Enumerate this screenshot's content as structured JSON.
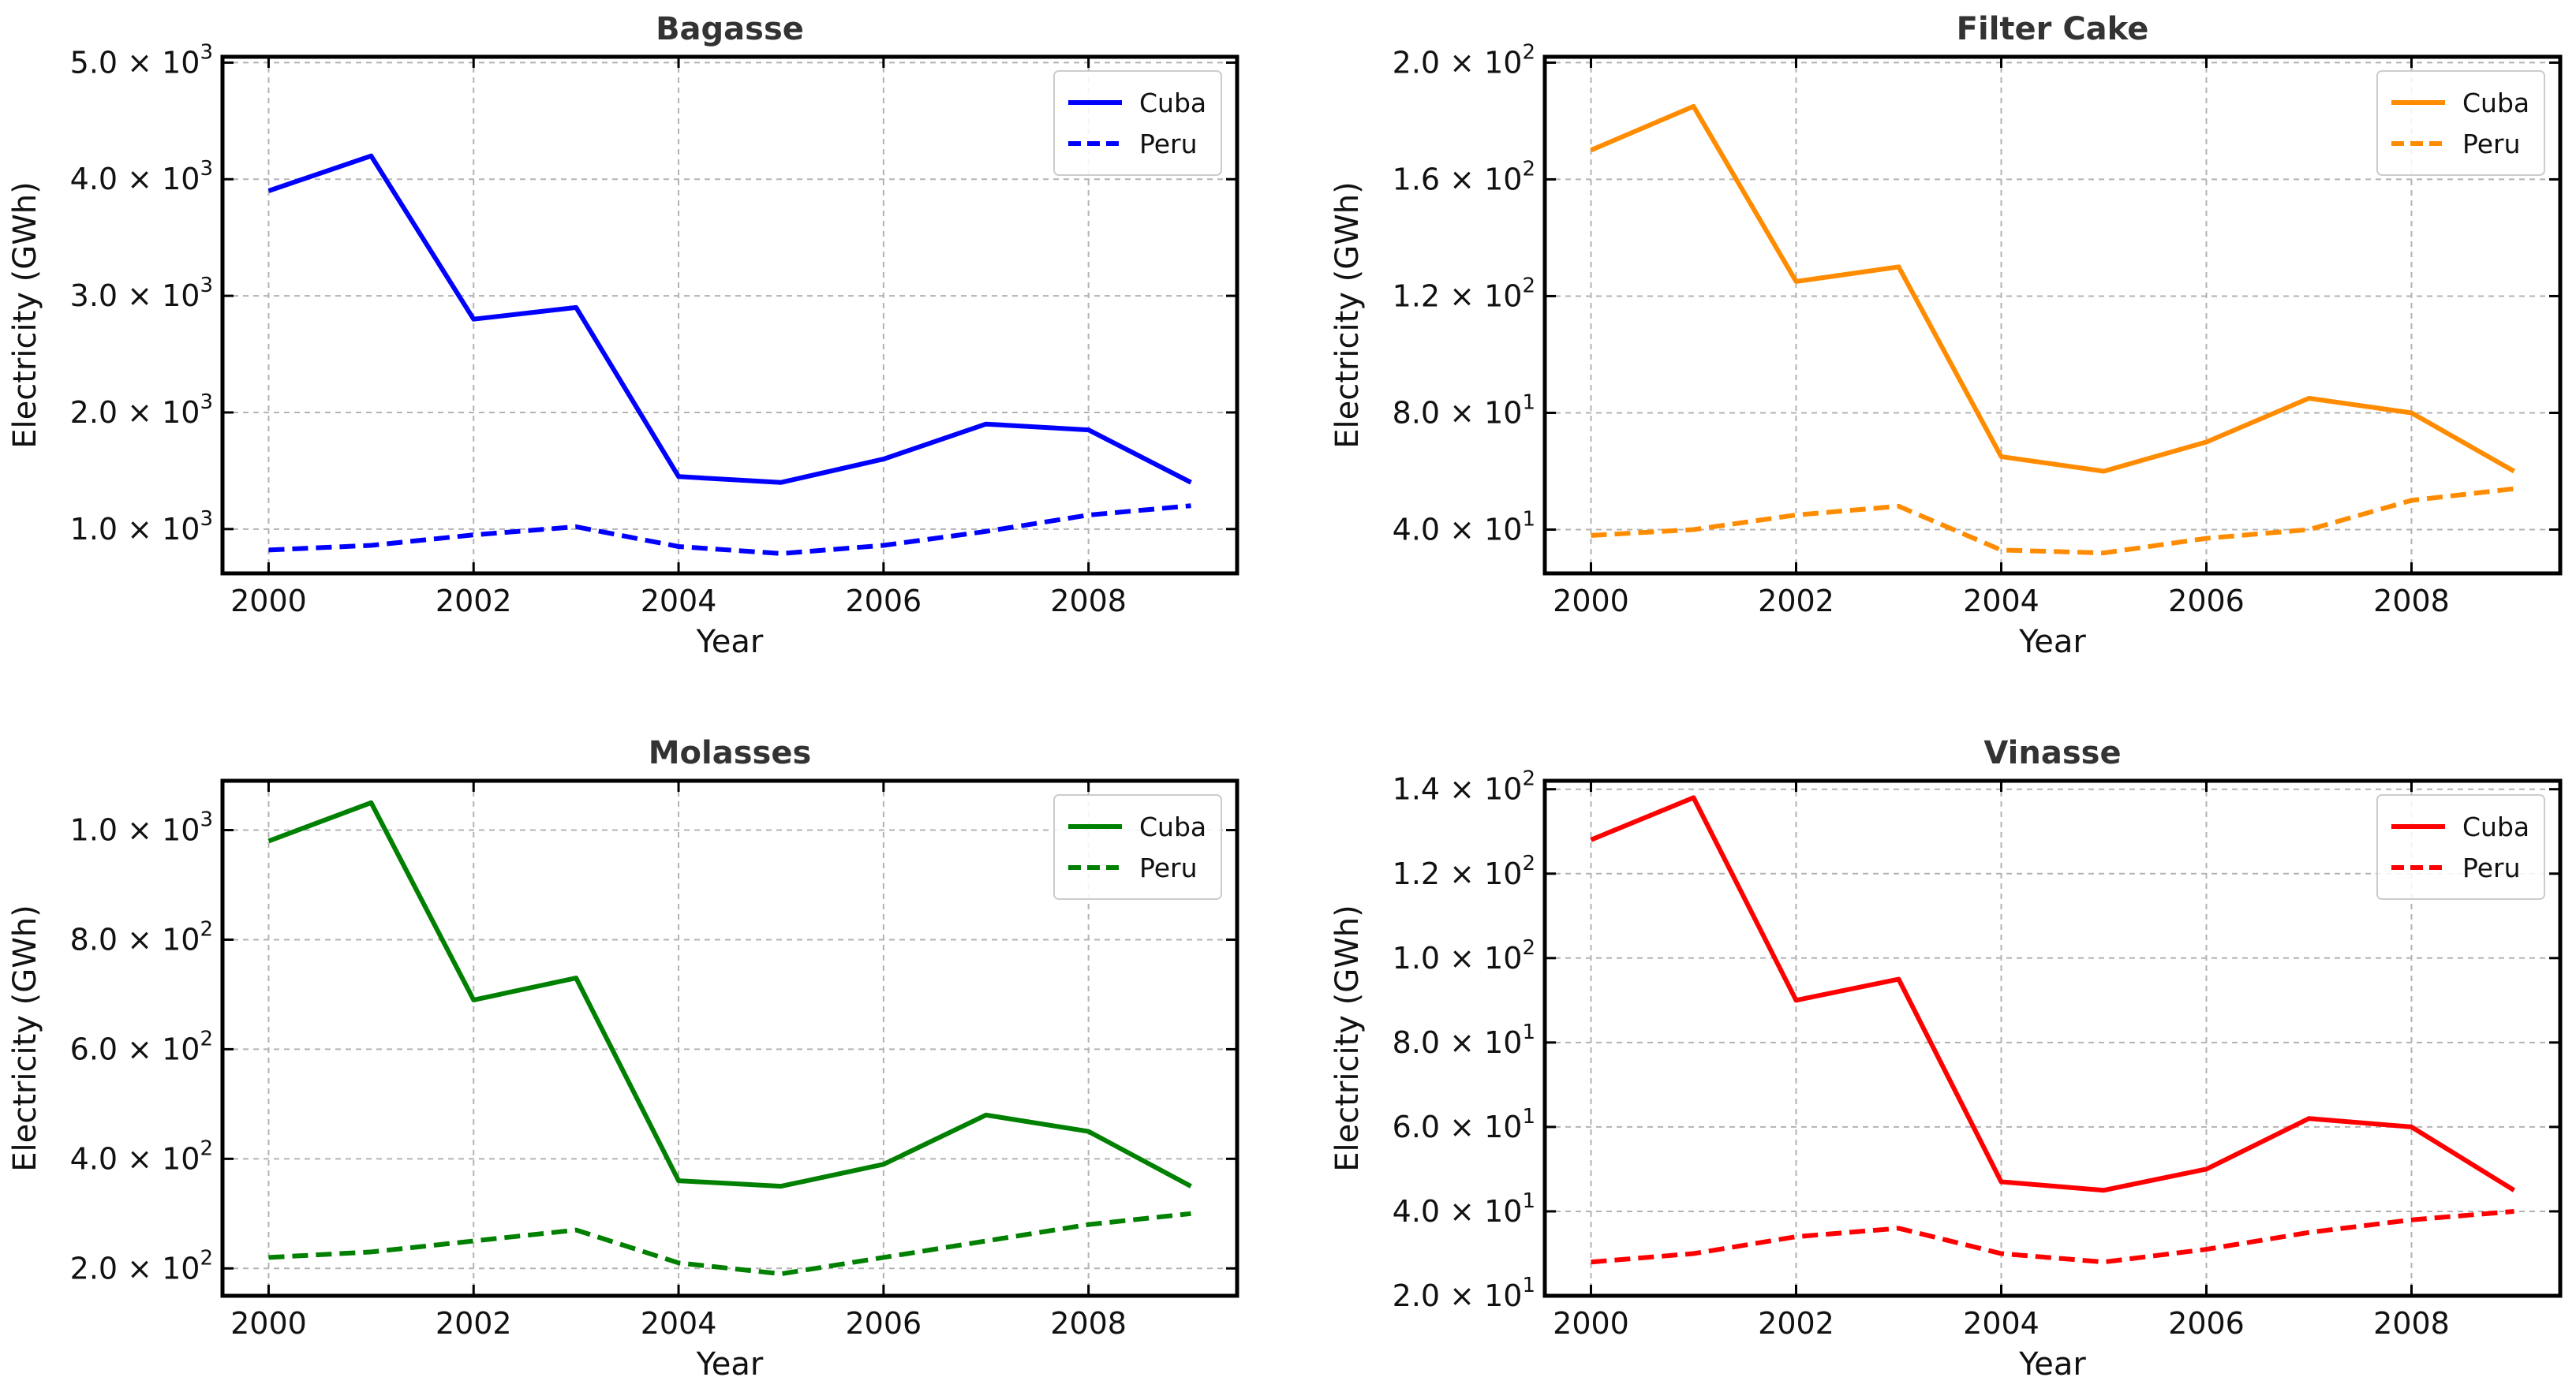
{
  "chart_data": [
    {
      "type": "line",
      "title": "Bagasse",
      "xlabel": "Year",
      "ylabel": "Electricity (GWh)",
      "x": [
        2000,
        2001,
        2002,
        2003,
        2004,
        2005,
        2006,
        2007,
        2008,
        2009
      ],
      "xticks": [
        "2000",
        "2002",
        "2004",
        "2006",
        "2008"
      ],
      "xlim": [
        1999.55,
        2009.45
      ],
      "ylim": [
        620,
        5050
      ],
      "yticks": [
        1000,
        2000,
        3000,
        4000,
        5000
      ],
      "ytick_mantissas": [
        "1.0",
        "2.0",
        "3.0",
        "4.0",
        "5.0"
      ],
      "ytick_exponents": [
        "3",
        "3",
        "3",
        "3",
        "3"
      ],
      "color": "#0000ff",
      "legend_position": "top-right",
      "series": [
        {
          "name": "Cuba",
          "linestyle": "solid",
          "values": [
            3900,
            4200,
            2800,
            2900,
            1450,
            1400,
            1600,
            1900,
            1850,
            1400
          ]
        },
        {
          "name": "Peru",
          "linestyle": "dashed",
          "values": [
            820,
            860,
            950,
            1020,
            850,
            790,
            860,
            980,
            1120,
            1200
          ]
        }
      ]
    },
    {
      "type": "line",
      "title": "Filter Cake",
      "xlabel": "Year",
      "ylabel": "Electricity (GWh)",
      "x": [
        2000,
        2001,
        2002,
        2003,
        2004,
        2005,
        2006,
        2007,
        2008,
        2009
      ],
      "xticks": [
        "2000",
        "2002",
        "2004",
        "2006",
        "2008"
      ],
      "xlim": [
        1999.55,
        2009.45
      ],
      "ylim": [
        25,
        202
      ],
      "yticks": [
        40,
        80,
        120,
        160,
        200
      ],
      "ytick_mantissas": [
        "4.0",
        "8.0",
        "1.2",
        "1.6",
        "2.0"
      ],
      "ytick_exponents": [
        "1",
        "1",
        "2",
        "2",
        "2"
      ],
      "color": "#ff8c00",
      "legend_position": "top-right",
      "series": [
        {
          "name": "Cuba",
          "linestyle": "solid",
          "values": [
            170,
            185,
            125,
            130,
            65,
            60,
            70,
            85,
            80,
            60
          ]
        },
        {
          "name": "Peru",
          "linestyle": "dashed",
          "values": [
            38,
            40,
            45,
            48,
            33,
            32,
            37,
            40,
            50,
            54
          ]
        }
      ]
    },
    {
      "type": "line",
      "title": "Molasses",
      "xlabel": "Year",
      "ylabel": "Electricity (GWh)",
      "x": [
        2000,
        2001,
        2002,
        2003,
        2004,
        2005,
        2006,
        2007,
        2008,
        2009
      ],
      "xticks": [
        "2000",
        "2002",
        "2004",
        "2006",
        "2008"
      ],
      "xlim": [
        1999.55,
        2009.45
      ],
      "ylim": [
        150,
        1090
      ],
      "yticks": [
        200,
        400,
        600,
        800,
        1000
      ],
      "ytick_mantissas": [
        "2.0",
        "4.0",
        "6.0",
        "8.0",
        "1.0"
      ],
      "ytick_exponents": [
        "2",
        "2",
        "2",
        "2",
        "3"
      ],
      "color": "#008000",
      "legend_position": "top-right",
      "series": [
        {
          "name": "Cuba",
          "linestyle": "solid",
          "values": [
            980,
            1050,
            690,
            730,
            360,
            350,
            390,
            480,
            450,
            350
          ]
        },
        {
          "name": "Peru",
          "linestyle": "dashed",
          "values": [
            220,
            230,
            250,
            270,
            210,
            190,
            220,
            250,
            280,
            300
          ]
        }
      ]
    },
    {
      "type": "line",
      "title": "Vinasse",
      "xlabel": "Year",
      "ylabel": "Electricity (GWh)",
      "x": [
        2000,
        2001,
        2002,
        2003,
        2004,
        2005,
        2006,
        2007,
        2008,
        2009
      ],
      "xticks": [
        "2000",
        "2002",
        "2004",
        "2006",
        "2008"
      ],
      "xlim": [
        1999.55,
        2009.45
      ],
      "ylim": [
        20,
        142
      ],
      "yticks": [
        20,
        40,
        60,
        80,
        100,
        120,
        140
      ],
      "ytick_mantissas": [
        "2.0",
        "4.0",
        "6.0",
        "8.0",
        "1.0",
        "1.2",
        "1.4"
      ],
      "ytick_exponents": [
        "1",
        "1",
        "1",
        "1",
        "2",
        "2",
        "2"
      ],
      "color": "#ff0000",
      "legend_position": "top-right",
      "series": [
        {
          "name": "Cuba",
          "linestyle": "solid",
          "values": [
            128,
            138,
            90,
            95,
            47,
            45,
            50,
            62,
            60,
            45
          ]
        },
        {
          "name": "Peru",
          "linestyle": "dashed",
          "values": [
            28,
            30,
            34,
            36,
            30,
            28,
            31,
            35,
            38,
            40
          ]
        }
      ]
    }
  ]
}
